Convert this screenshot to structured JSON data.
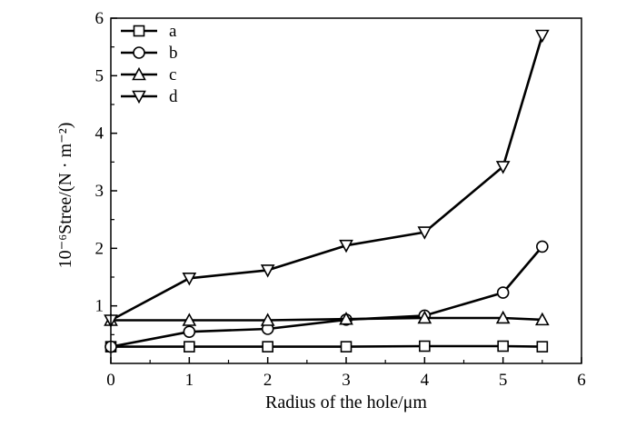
{
  "chart_data": {
    "type": "line",
    "title": "",
    "xlabel": "Radius of the hole/μm",
    "ylabel": "10⁻⁶Stree/(N · m⁻²)",
    "xlim": [
      0,
      6
    ],
    "ylim": [
      0,
      6
    ],
    "xticks": [
      "0",
      "1",
      "2",
      "3",
      "4",
      "5",
      "6"
    ],
    "yticks": [
      "1",
      "2",
      "3",
      "4",
      "5",
      "6"
    ],
    "grid": false,
    "legend_position": "top-left",
    "x": [
      0,
      1,
      2,
      3,
      4,
      5,
      5.5
    ],
    "series": [
      {
        "name": "a",
        "marker": "square",
        "values": [
          0.29,
          0.29,
          0.29,
          0.29,
          0.3,
          0.3,
          0.29
        ]
      },
      {
        "name": "b",
        "marker": "circle",
        "values": [
          0.29,
          0.55,
          0.6,
          0.76,
          0.83,
          1.23,
          2.03
        ]
      },
      {
        "name": "c",
        "marker": "triangle-up",
        "values": [
          0.75,
          0.75,
          0.75,
          0.77,
          0.79,
          0.79,
          0.76
        ]
      },
      {
        "name": "d",
        "marker": "triangle-down",
        "values": [
          0.75,
          1.48,
          1.62,
          2.05,
          2.28,
          3.42,
          5.7
        ]
      }
    ]
  }
}
